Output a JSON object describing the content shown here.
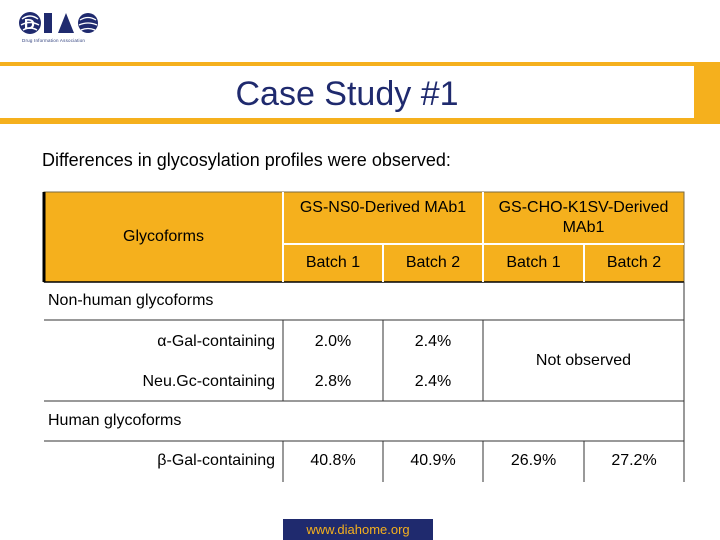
{
  "logo": {
    "name": "DIA",
    "subtitle": "Drug Information Association"
  },
  "title": "Case Study #1",
  "intro": "Differences in glycosylation profiles were observed:",
  "table": {
    "header_row_label": "Glycoforms",
    "group_ns0": "GS-NS0-Derived MAb1",
    "group_cho": "GS-CHO-K1SV-Derived MAb1",
    "batch1": "Batch 1",
    "batch2": "Batch 2",
    "section_nonhuman": "Non-human glycoforms",
    "section_human": "Human glycoforms",
    "not_observed": "Not observed",
    "rows": [
      {
        "label": "α-Gal-containing",
        "ns0_b1": "2.0%",
        "ns0_b2": "2.4%"
      },
      {
        "label": "Neu.Gc-containing",
        "ns0_b1": "2.8%",
        "ns0_b2": "2.4%"
      },
      {
        "label": "β-Gal-containing",
        "ns0_b1": "40.8%",
        "ns0_b2": "40.9%",
        "cho_b1": "26.9%",
        "cho_b2": "27.2%"
      }
    ]
  },
  "colors": {
    "accent": "#f5b01d",
    "navy": "#1f2a6e"
  },
  "footer": "www.diahome.org"
}
